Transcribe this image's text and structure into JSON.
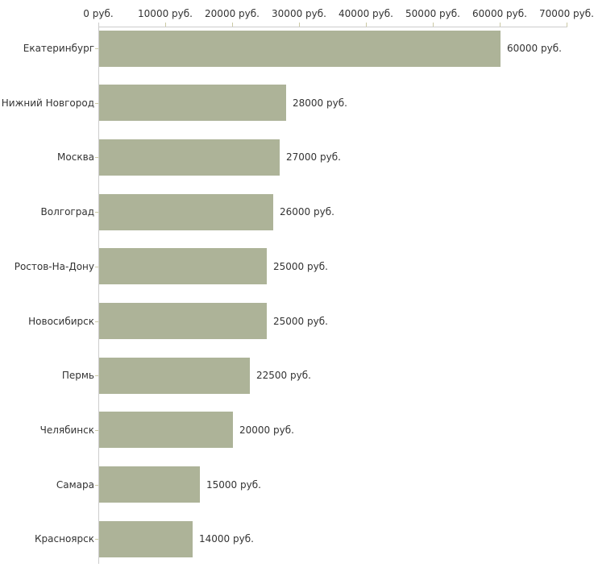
{
  "chart_data": {
    "type": "bar",
    "orientation": "horizontal",
    "title": "",
    "unit": "руб.",
    "categories": [
      "Екатеринбург",
      "Нижний Новгород",
      "Москва",
      "Волгоград",
      "Ростов-На-Дону",
      "Новосибирск",
      "Пермь",
      "Челябинск",
      "Самара",
      "Красноярск"
    ],
    "values": [
      60000,
      28000,
      27000,
      26000,
      25000,
      25000,
      22500,
      20000,
      15000,
      14000
    ],
    "value_labels": [
      "60000 руб.",
      "28000 руб.",
      "27000 руб.",
      "26000 руб.",
      "25000 руб.",
      "25000 руб.",
      "22500 руб.",
      "20000 руб.",
      "15000 руб.",
      "14000 руб."
    ],
    "x_axis": {
      "position": "top",
      "range": [
        0,
        70000
      ],
      "ticks": [
        0,
        10000,
        20000,
        30000,
        40000,
        50000,
        60000,
        70000
      ],
      "tick_labels": [
        "0 руб.",
        "10000 руб.",
        "20000 руб.",
        "30000 руб.",
        "40000 руб.",
        "50000 руб.",
        "60000 руб.",
        "70000 руб."
      ]
    },
    "grid": false,
    "legend": null,
    "colors": {
      "bar": "#adb398",
      "axis_line": "#cccccc",
      "tick": "#cbc9a4",
      "text": "#333333",
      "background": "#ffffff"
    }
  }
}
